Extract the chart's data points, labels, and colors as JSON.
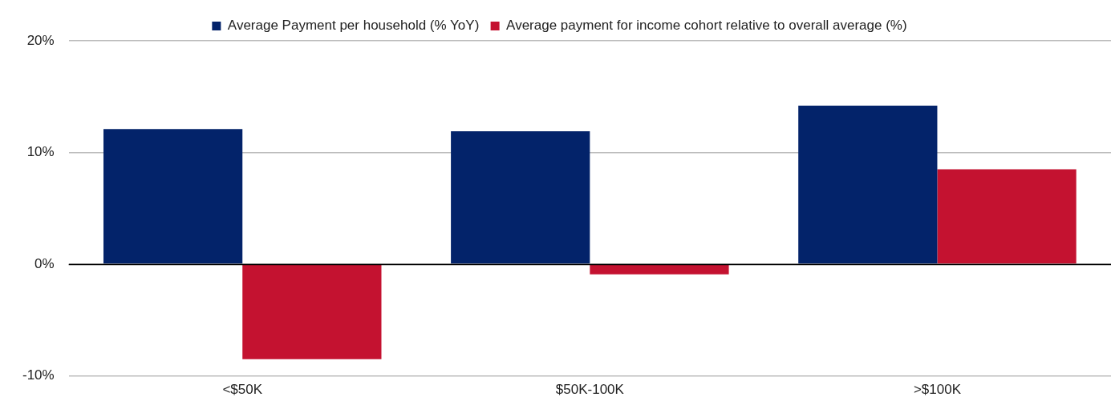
{
  "chart_data": {
    "type": "bar",
    "categories": [
      "<$50K",
      "$50K-100K",
      ">$100K"
    ],
    "series": [
      {
        "name": "Average Payment per household (% YoY)",
        "color": "#03236a",
        "values": [
          12.1,
          11.9,
          14.2
        ]
      },
      {
        "name": "Average payment for income cohort relative to overall average (%)",
        "color": "#c41230",
        "values": [
          -8.5,
          -0.9,
          8.5
        ]
      }
    ],
    "ylim": [
      -10,
      20
    ],
    "yticks": [
      {
        "value": -10,
        "label": "-10%"
      },
      {
        "value": 0,
        "label": "0%"
      },
      {
        "value": 10,
        "label": "10%"
      },
      {
        "value": 20,
        "label": "20%"
      }
    ],
    "grid": "y",
    "legend": "top"
  }
}
